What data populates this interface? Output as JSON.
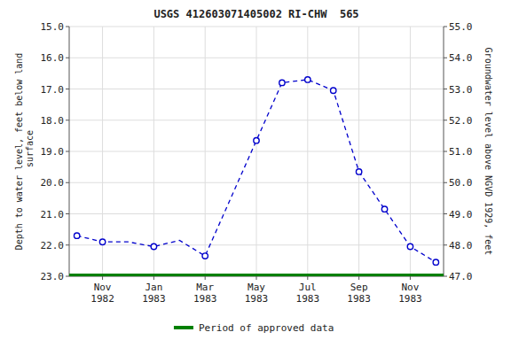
{
  "chart_data": {
    "type": "line",
    "title": "USGS 412603071405002 RI-CHW  565",
    "y_label": "Depth to water level, feet below land\n surface",
    "y2_label": "Groundwater level above NGVD 1929, feet",
    "categories": [
      null,
      "Nov\n1982",
      null,
      "Jan\n1983",
      null,
      "Mar\n1983",
      null,
      "May\n1983",
      null,
      "Jul\n1983",
      null,
      "Sep\n1983",
      null,
      "Nov\n1983",
      null
    ],
    "series": [
      {
        "type": "line",
        "line_style": "dashed",
        "marker": "none",
        "color": "#0000CC",
        "values": [
          21.7,
          21.9,
          21.9,
          22.05,
          21.85,
          22.35,
          20.5,
          18.65,
          16.8,
          16.7,
          17.05,
          19.65,
          20.85,
          22.05,
          22.55
        ]
      },
      {
        "type": "scatter",
        "marker": "circle",
        "color": "#0000CC",
        "values": [
          21.7,
          21.9,
          null,
          22.05,
          null,
          22.35,
          null,
          18.65,
          16.8,
          16.7,
          17.05,
          19.65,
          20.85,
          22.05,
          22.55
        ]
      },
      {
        "type": "hline",
        "name": "Period of approved data",
        "color": "#008000",
        "value": 23.0
      }
    ],
    "ylim": [
      23.0,
      15.0
    ],
    "yticks": [
      {
        "value": 15.0,
        "label": "15.0"
      },
      {
        "value": 16.0,
        "label": "16.0"
      },
      {
        "value": 17.0,
        "label": "17.0"
      },
      {
        "value": 18.0,
        "label": "18.0"
      },
      {
        "value": 19.0,
        "label": "19.0"
      },
      {
        "value": 20.0,
        "label": "20.0"
      },
      {
        "value": 21.0,
        "label": "21.0"
      },
      {
        "value": 22.0,
        "label": "22.0"
      },
      {
        "value": 23.0,
        "label": "23.0"
      }
    ],
    "y2lim": [
      47.0,
      55.0
    ],
    "y2ticks": [
      {
        "value": 55.0,
        "label": "55.0"
      },
      {
        "value": 54.0,
        "label": "54.0"
      },
      {
        "value": 53.0,
        "label": "53.0"
      },
      {
        "value": 52.0,
        "label": "52.0"
      },
      {
        "value": 51.0,
        "label": "51.0"
      },
      {
        "value": 50.0,
        "label": "50.0"
      },
      {
        "value": 49.0,
        "label": "49.0"
      },
      {
        "value": 48.0,
        "label": "48.0"
      },
      {
        "value": 47.0,
        "label": "47.0"
      }
    ],
    "grid": true,
    "legend": "bottom"
  }
}
